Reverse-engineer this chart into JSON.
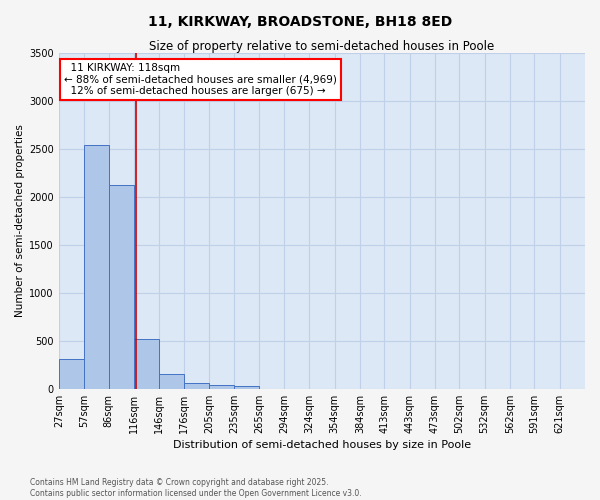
{
  "title": "11, KIRKWAY, BROADSTONE, BH18 8ED",
  "subtitle": "Size of property relative to semi-detached houses in Poole",
  "xlabel": "Distribution of semi-detached houses by size in Poole",
  "ylabel": "Number of semi-detached properties",
  "bin_labels": [
    "27sqm",
    "57sqm",
    "86sqm",
    "116sqm",
    "146sqm",
    "176sqm",
    "205sqm",
    "235sqm",
    "265sqm",
    "294sqm",
    "324sqm",
    "354sqm",
    "384sqm",
    "413sqm",
    "443sqm",
    "473sqm",
    "502sqm",
    "532sqm",
    "562sqm",
    "591sqm",
    "621sqm"
  ],
  "bin_starts": [
    27,
    57,
    86,
    116,
    146,
    176,
    205,
    235,
    265,
    294,
    324,
    354,
    384,
    413,
    443,
    473,
    502,
    532,
    562,
    591,
    621
  ],
  "bar_heights": [
    310,
    2540,
    2120,
    520,
    150,
    65,
    35,
    30,
    0,
    0,
    0,
    0,
    0,
    0,
    0,
    0,
    0,
    0,
    0,
    0,
    0
  ],
  "bar_color": "#aec6e8",
  "bar_edge_color": "#4472c4",
  "property_size": 118,
  "pct_smaller": 88,
  "pct_larger": 12,
  "n_smaller": 4969,
  "n_larger": 675,
  "vline_color": "#cc0000",
  "ylim": [
    0,
    3500
  ],
  "grid_color": "#c0d0e8",
  "background_color": "#dce8f5",
  "fig_background": "#f5f5f5",
  "footnote1": "Contains HM Land Registry data © Crown copyright and database right 2025.",
  "footnote2": "Contains public sector information licensed under the Open Government Licence v3.0.",
  "title_fontsize": 10,
  "subtitle_fontsize": 8.5,
  "xlabel_fontsize": 8,
  "ylabel_fontsize": 7.5,
  "tick_fontsize": 7,
  "annot_fontsize": 7.5
}
